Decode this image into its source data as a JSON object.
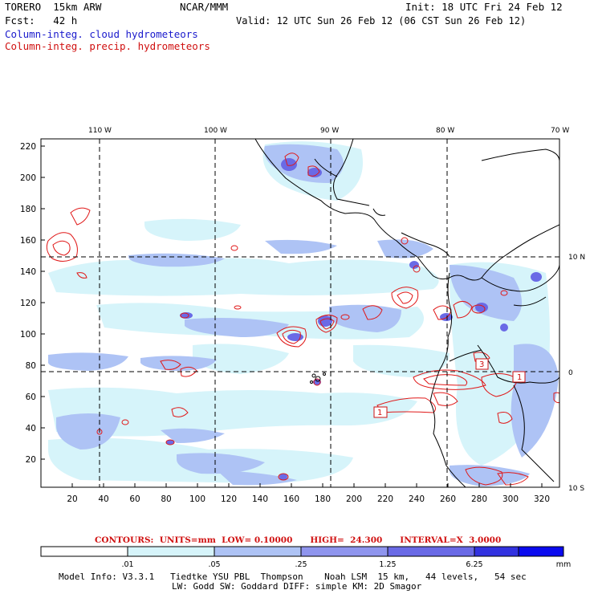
{
  "header": {
    "model": "TORERO  15km ARW",
    "org": "NCAR/MMM",
    "init": "Init: 18 UTC Fri 24 Feb 12",
    "fcst": "Fcst:   42 h",
    "valid": "Valid: 12 UTC Sun 26 Feb 12 (06 CST Sun 26 Feb 12)",
    "field_blue": "Column-integ. cloud hydrometeors",
    "field_red": "Column-integ. precip. hydrometeors"
  },
  "map": {
    "top_lon_labels": [
      "110 W",
      "100 W",
      "90 W",
      "80 W",
      "70 W"
    ],
    "left_y_labels": [
      "220",
      "200",
      "180",
      "160",
      "140",
      "120",
      "100",
      "80",
      "60",
      "40",
      "20"
    ],
    "bottom_x_labels": [
      "20",
      "40",
      "60",
      "80",
      "100",
      "120",
      "140",
      "160",
      "180",
      "200",
      "220",
      "240",
      "260",
      "280",
      "300",
      "320"
    ],
    "right_lat_labels": [
      "10 N",
      "0",
      "10 S"
    ],
    "contour_labels": [
      "3",
      "1",
      "1"
    ]
  },
  "contours": {
    "label": "CONTOURS:",
    "units": "UNITS=mm",
    "low": "LOW= 0.10000",
    "high": "HIGH=  24.300",
    "interval": "INTERVAL=X  3.0000"
  },
  "colorbar": {
    "tick_labels": [
      ".01",
      ".05",
      ".25",
      "1.25",
      "6.25"
    ],
    "units": "mm",
    "colors": [
      "#ffffff",
      "#d6f4fa",
      "#aec3f5",
      "#8f95ee",
      "#6a6ae6",
      "#3232e0",
      "#0a0aef"
    ]
  },
  "footer": {
    "line1": "Model Info: V3.3.1   Tiedtke YSU PBL  Thompson    Noah LSM  15 km,   44 levels,   54 sec",
    "line2": "LW: Godd SW: Goddard DIFF: simple KM: 2D Smagor"
  }
}
